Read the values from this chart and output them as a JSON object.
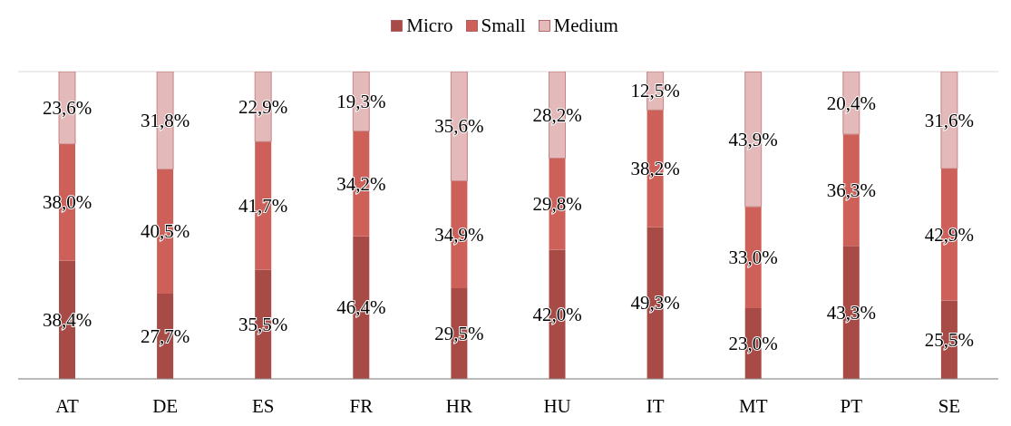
{
  "chart_data": {
    "type": "bar",
    "stacked": true,
    "categories": [
      "AT",
      "DE",
      "ES",
      "FR",
      "HR",
      "HU",
      "IT",
      "MT",
      "PT",
      "SE"
    ],
    "series": [
      {
        "name": "Micro",
        "color": "#a84a45",
        "values": [
          38.4,
          27.7,
          35.5,
          46.4,
          29.5,
          42.0,
          49.3,
          23.0,
          43.3,
          25.5
        ],
        "value_labels": [
          "38,4%",
          "27,7%",
          "35,5%",
          "46,4%",
          "29,5%",
          "42,0%",
          "49,3%",
          "23,0%",
          "43,3%",
          "25,5%"
        ]
      },
      {
        "name": "Small",
        "color": "#cd615a",
        "values": [
          38.0,
          40.5,
          41.7,
          34.2,
          34.9,
          29.8,
          38.2,
          33.0,
          36.3,
          42.9
        ],
        "value_labels": [
          "38,0%",
          "40,5%",
          "41,7%",
          "34,2%",
          "34,9%",
          "29,8%",
          "38,2%",
          "33,0%",
          "36,3%",
          "42,9%"
        ]
      },
      {
        "name": "Medium",
        "color": "#e3b9b9",
        "values": [
          23.6,
          31.8,
          22.9,
          19.3,
          35.6,
          28.2,
          12.5,
          43.9,
          20.4,
          31.6
        ],
        "value_labels": [
          "23,6%",
          "31,8%",
          "22,9%",
          "19,3%",
          "35,6%",
          "28,2%",
          "12,5%",
          "43,9%",
          "20,4%",
          "31,6%"
        ]
      }
    ],
    "ylim": [
      0,
      100
    ],
    "tick_labels": "x",
    "grid": "y",
    "legend": "top"
  }
}
